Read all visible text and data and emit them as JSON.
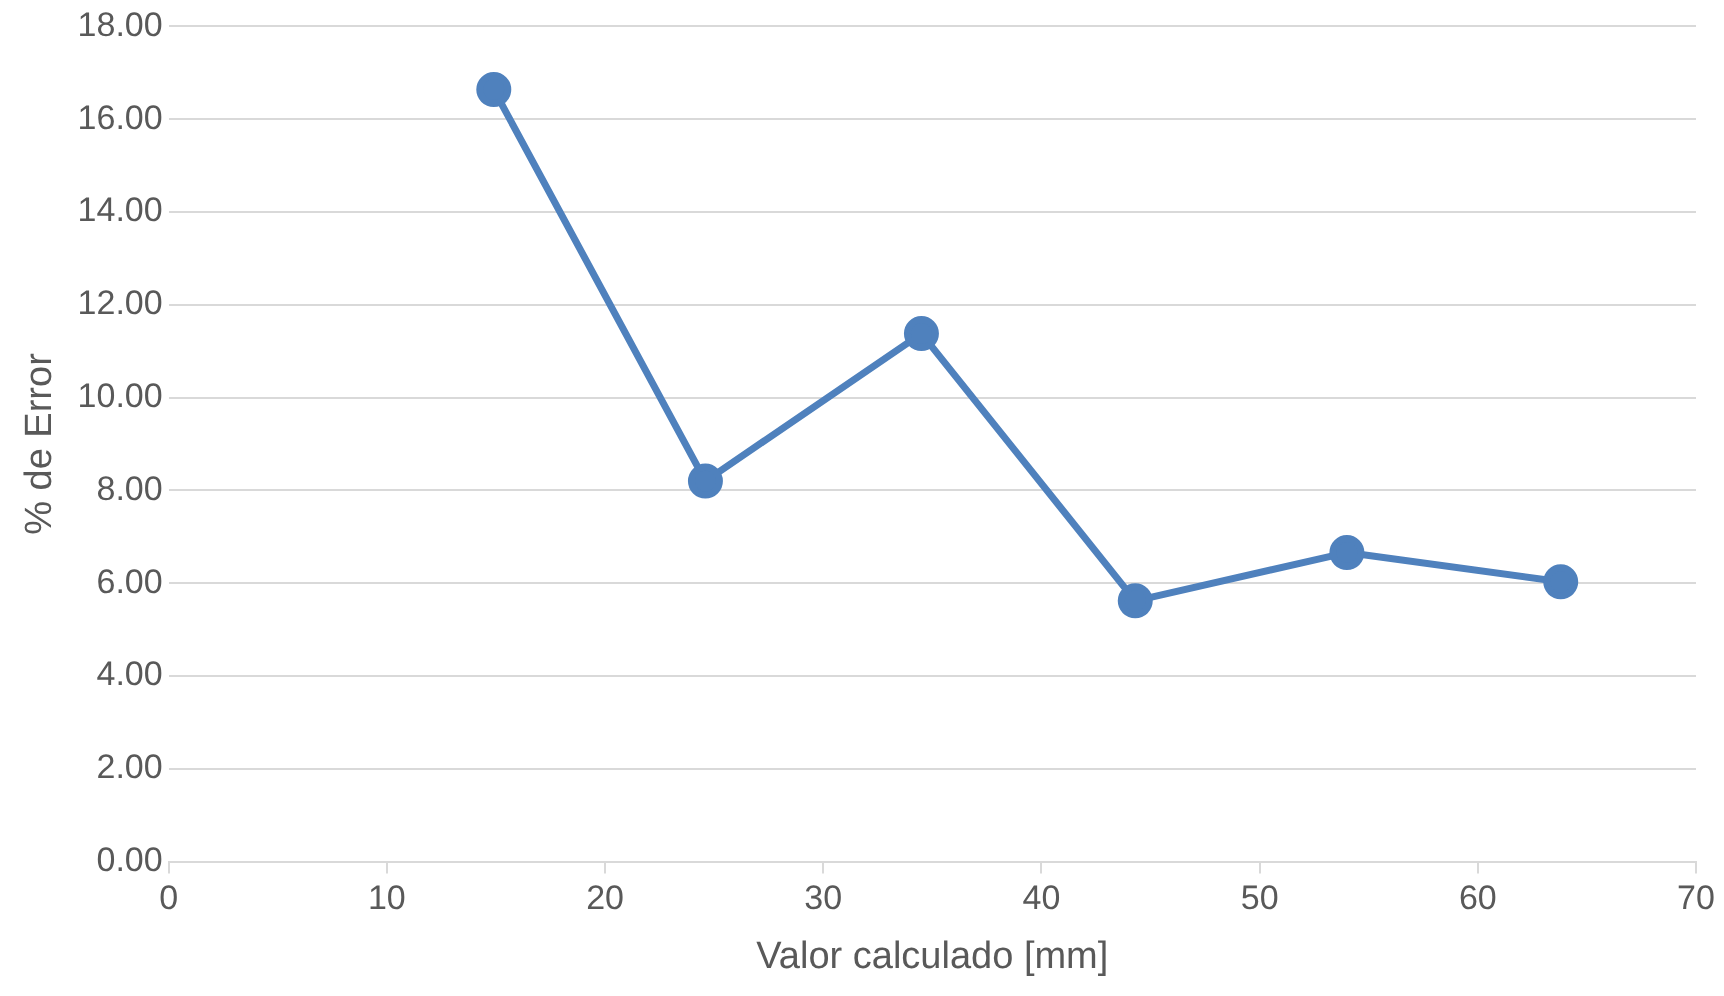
{
  "chart_data": {
    "type": "line",
    "xlabel": "Valor calculado [mm]",
    "ylabel": "% de Error",
    "x": [
      14.9,
      24.6,
      34.5,
      44.3,
      54.0,
      63.8
    ],
    "series": [
      {
        "color": "#4f81bd",
        "values": [
          16.64,
          8.2,
          11.38,
          5.62,
          6.66,
          6.03
        ]
      }
    ],
    "xlim": [
      0,
      70
    ],
    "xticks": [
      0,
      10,
      20,
      30,
      40,
      50,
      60,
      70
    ],
    "ylim": [
      0,
      18
    ],
    "yticks": [
      {
        "value": 0,
        "label": "0.00"
      },
      {
        "value": 2,
        "label": "2.00"
      },
      {
        "value": 4,
        "label": "4.00"
      },
      {
        "value": 6,
        "label": "6.00"
      },
      {
        "value": 8,
        "label": "8.00"
      },
      {
        "value": 10,
        "label": "10.00"
      },
      {
        "value": 12,
        "label": "12.00"
      },
      {
        "value": 14,
        "label": "14.00"
      },
      {
        "value": 16,
        "label": "16.00"
      },
      {
        "value": 18,
        "label": "18.00"
      }
    ],
    "grid": "y",
    "legend": false,
    "marker": "circle",
    "line_style": "solid"
  }
}
